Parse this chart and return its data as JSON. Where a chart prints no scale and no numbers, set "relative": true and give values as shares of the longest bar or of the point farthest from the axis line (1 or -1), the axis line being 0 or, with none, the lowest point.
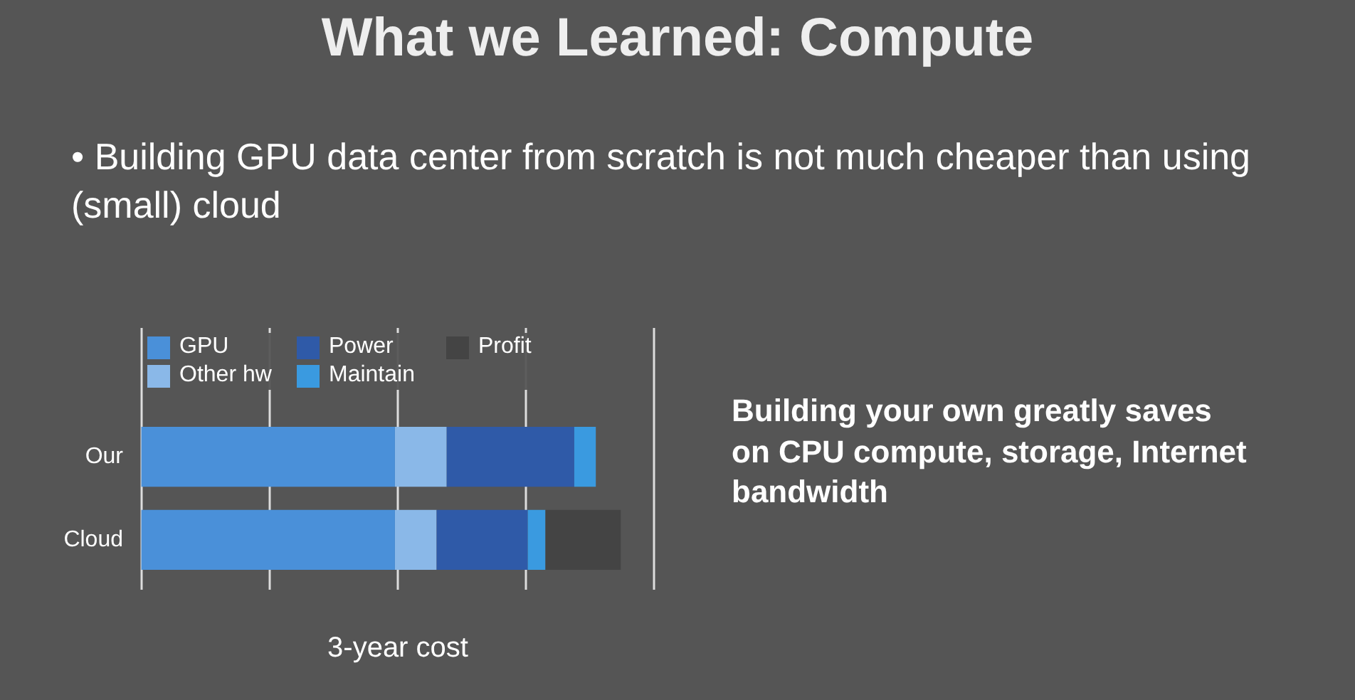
{
  "chart_data": {
    "type": "bar",
    "orientation": "horizontal",
    "stacked": true,
    "relative": true,
    "title": "What we Learned: Compute",
    "subtitle": "• Building GPU data center from scratch is not much cheaper than using (small) cloud",
    "annotations": [
      "Building your own greatly saves on CPU compute, storage, Internet bandwidth"
    ],
    "xlabel": "3-year cost",
    "categories": [
      "Our",
      "Cloud"
    ],
    "series": [
      {
        "name": "GPU",
        "color": "#4a90d9",
        "values": [
          0.529,
          0.529
        ]
      },
      {
        "name": "Other hw",
        "color": "#8ab8e8",
        "values": [
          0.108,
          0.087
        ]
      },
      {
        "name": "Power",
        "color": "#2f5aa8",
        "values": [
          0.266,
          0.19
        ]
      },
      {
        "name": "Maintain",
        "color": "#3a9ae0",
        "values": [
          0.045,
          0.037
        ]
      },
      {
        "name": "Profit",
        "color": "#444444",
        "values": [
          0,
          0.157
        ]
      }
    ],
    "legend": "top",
    "grid": "x"
  }
}
